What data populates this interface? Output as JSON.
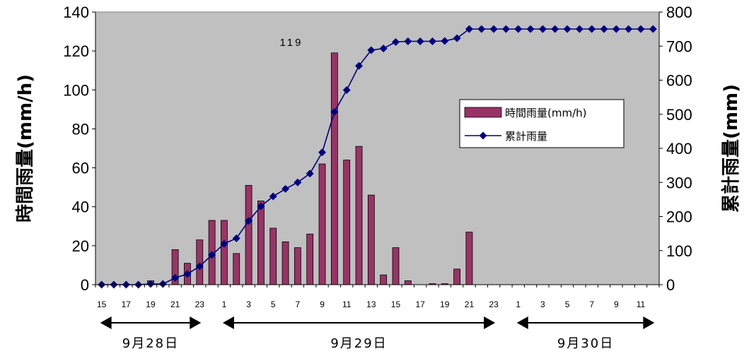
{
  "chart_data": {
    "type": "bar+line",
    "categories": [
      "15",
      "16",
      "17",
      "18",
      "19",
      "20",
      "21",
      "22",
      "23",
      "0",
      "1",
      "2",
      "3",
      "4",
      "5",
      "6",
      "7",
      "8",
      "9",
      "10",
      "11",
      "12",
      "13",
      "14",
      "15",
      "16",
      "17",
      "18",
      "19",
      "20",
      "21",
      "22",
      "23",
      "0",
      "1",
      "2",
      "3",
      "4",
      "5",
      "6",
      "7",
      "8",
      "9",
      "10",
      "11",
      "12"
    ],
    "x_tick_labels": [
      "15",
      "17",
      "19",
      "21",
      "23",
      "1",
      "3",
      "5",
      "7",
      "9",
      "11",
      "13",
      "15",
      "17",
      "19",
      "21",
      "23",
      "1",
      "3",
      "5",
      "7",
      "9",
      "11"
    ],
    "series": [
      {
        "name": "時間雨量(mm/h)",
        "type": "bar",
        "axis": "left",
        "color": "#993366",
        "values": [
          0,
          0,
          0,
          0,
          2,
          0,
          18,
          11,
          23,
          33,
          33,
          16,
          51,
          43,
          29,
          22,
          19,
          26,
          62,
          119,
          64,
          71,
          46,
          5,
          19,
          2,
          0,
          0.5,
          0.5,
          8,
          27,
          0,
          0,
          0,
          0,
          0,
          0,
          0,
          0,
          0,
          0,
          0,
          0,
          0,
          0,
          0
        ]
      },
      {
        "name": "累計雨量",
        "type": "line",
        "axis": "right",
        "color": "#000080",
        "values": [
          0,
          0,
          0,
          0,
          2,
          2,
          20,
          31,
          54,
          87,
          120,
          136,
          187,
          230,
          259,
          281,
          300,
          326,
          388,
          507,
          571,
          642,
          688,
          693,
          712,
          714,
          714,
          714,
          715,
          723,
          750,
          750,
          750,
          750,
          750,
          750,
          750,
          750,
          750,
          750,
          750,
          750,
          750,
          750,
          750,
          750
        ]
      }
    ],
    "left_axis": {
      "label": "時間雨量(mm/h)",
      "min": 0,
      "max": 140,
      "ticks": [
        "0",
        "20",
        "40",
        "60",
        "80",
        "100",
        "120",
        "140"
      ]
    },
    "right_axis": {
      "label": "累計雨量(mm)",
      "min": 0,
      "max": 800,
      "ticks": [
        "0",
        "100",
        "200",
        "300",
        "400",
        "500",
        "600",
        "700",
        "800"
      ]
    },
    "annotations": [
      {
        "text": "119"
      }
    ],
    "date_ranges": [
      {
        "label": "9月28日",
        "from": 0,
        "to": 8
      },
      {
        "label": "9月29日",
        "from": 10,
        "to": 32
      },
      {
        "label": "9月30日",
        "from": 34,
        "to": 45
      }
    ],
    "legend": {
      "position": "right-middle"
    },
    "grid": false,
    "plot_background": "#c0c0c0"
  }
}
